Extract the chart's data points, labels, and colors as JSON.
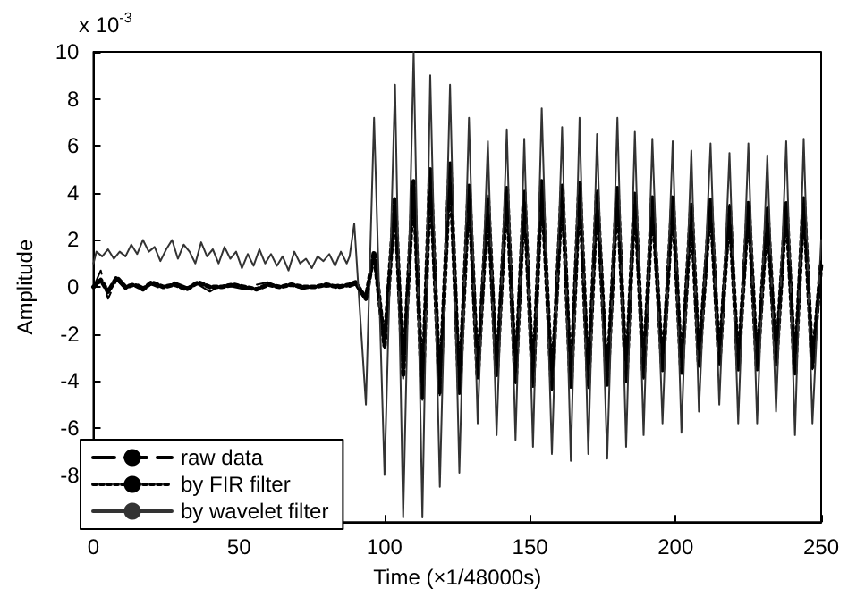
{
  "chart_data": {
    "type": "line",
    "xlabel": "Time (×1/48000s)",
    "ylabel": "Amplitude",
    "annotations": [
      "x 10$^{-3}$"
    ],
    "x": [
      0,
      2.5,
      5,
      8,
      11,
      14,
      17,
      20,
      24,
      28,
      32,
      36,
      40,
      44,
      48,
      52,
      56,
      60,
      64,
      68,
      72,
      76,
      80,
      84,
      88,
      90,
      93.6,
      96.4,
      100,
      103.6,
      106.4,
      110,
      113,
      115.7,
      119,
      122.5,
      125.7,
      129,
      132,
      135.5,
      138.5,
      142,
      145,
      148,
      151,
      154,
      157.5,
      161,
      164,
      167,
      170,
      173,
      176.5,
      180,
      183,
      186,
      189,
      192,
      195.5,
      199,
      202,
      205.4,
      208,
      212,
      215,
      218.5,
      221.5,
      225,
      228,
      231.5,
      234.5,
      238,
      241,
      244,
      247,
      250
    ],
    "series": [
      {
        "name": "raw data",
        "color": "#000000",
        "line_style": "dashed",
        "values": [
          0,
          0.7,
          -0.5,
          0.3,
          -0.1,
          0.2,
          0,
          0.1,
          -0.1,
          0.2,
          0,
          0.1,
          -0.2,
          0.1,
          0,
          -0.1,
          0.1,
          0.2,
          0,
          0.1,
          -0.1,
          0.1,
          0,
          0.1,
          0,
          0.1,
          -0.6,
          1.4,
          -2.6,
          3.7,
          -3.9,
          4.4,
          -4.8,
          4.9,
          -4.6,
          5.2,
          -4.4,
          4.2,
          -3.9,
          3.9,
          -3.7,
          4.1,
          -4.1,
          4.1,
          -4.1,
          4.4,
          -4.4,
          4.2,
          -4.2,
          4.3,
          -4.3,
          4.1,
          -4.1,
          4.1,
          -3.9,
          3.9,
          -3.9,
          3.7,
          -3.5,
          3.7,
          -3.6,
          3.4,
          -3.4,
          3.6,
          -3.3,
          3.5,
          -3.4,
          3.5,
          -3.4,
          3.4,
          -3.2,
          3.5,
          -3.6,
          3.7,
          -3.5,
          1.1
        ]
      },
      {
        "name": "by FIR filter",
        "color": "#000000",
        "line_style": "dotted",
        "values": [
          0,
          0.3,
          -0.2,
          0.4,
          0,
          0.1,
          -0.1,
          0.2,
          0,
          0.1,
          -0.1,
          0.2,
          0,
          0,
          0.1,
          0,
          -0.1,
          0.1,
          0,
          0.1,
          0,
          0,
          0.1,
          0,
          0.1,
          0.2,
          -0.5,
          1.5,
          -2.5,
          3.8,
          -3.8,
          4.5,
          -4.7,
          5.0,
          -4.5,
          5.3,
          -4.5,
          4.3,
          -3.8,
          3.8,
          -3.8,
          4.2,
          -4.0,
          4.0,
          -4.2,
          4.5,
          -4.3,
          4.3,
          -4.3,
          4.4,
          -4.2,
          4.0,
          -4.2,
          4.2,
          -4.0,
          4.0,
          -3.8,
          3.8,
          -3.6,
          3.8,
          -3.7,
          3.5,
          -3.3,
          3.7,
          -3.2,
          3.4,
          -3.5,
          3.6,
          -3.5,
          3.3,
          -3.3,
          3.6,
          -3.7,
          3.8,
          -3.4,
          1.0
        ]
      },
      {
        "name": "by wavelet filter",
        "color": "#333333",
        "line_style": "solid",
        "x": [
          0,
          1,
          3,
          5,
          7,
          9,
          11,
          13,
          15,
          17,
          19,
          21,
          23,
          25,
          27,
          29,
          31,
          33,
          35,
          37,
          39,
          41,
          43,
          45,
          47,
          49,
          51,
          53,
          55,
          57,
          59,
          61,
          63,
          65,
          67,
          69,
          71,
          73,
          75,
          77,
          79,
          81,
          83,
          85,
          87,
          88,
          89.6,
          93.6,
          96.4,
          100,
          103.6,
          106.4,
          110,
          113,
          115.7,
          119,
          122.5,
          125.7,
          129,
          132,
          135.5,
          138.5,
          142,
          145,
          148,
          151,
          154,
          157.5,
          161,
          164,
          167,
          170,
          173,
          176.5,
          180,
          183,
          186,
          189,
          192,
          195.5,
          199,
          202,
          205.4,
          208,
          212,
          215,
          218.5,
          221.5,
          225,
          228,
          231.5,
          234.5,
          238,
          241,
          244,
          247,
          250
        ],
        "values": [
          1.0,
          1.5,
          1.3,
          1.6,
          1.2,
          1.5,
          1.3,
          1.8,
          1.4,
          2.0,
          1.5,
          1.7,
          1.1,
          1.6,
          2.0,
          1.2,
          1.8,
          1.5,
          1.0,
          1.9,
          1.3,
          1.6,
          1.0,
          1.7,
          1.2,
          1.5,
          0.8,
          1.4,
          0.9,
          1.6,
          1.0,
          1.4,
          0.9,
          1.3,
          0.7,
          1.5,
          1.0,
          1.2,
          0.8,
          1.3,
          1.1,
          1.4,
          0.9,
          1.5,
          1.0,
          1.3,
          2.7,
          -5.0,
          7.2,
          -8.0,
          8.6,
          -9.8,
          10,
          -9.8,
          9.0,
          -8.5,
          8.6,
          -7.9,
          7.2,
          -5.8,
          6.2,
          -6.3,
          6.7,
          -6.5,
          6.3,
          -6.8,
          7.6,
          -7.1,
          6.8,
          -7.4,
          7.2,
          -7.1,
          6.5,
          -7.3,
          7.2,
          -6.8,
          6.6,
          -6.3,
          6.3,
          -5.8,
          6.2,
          -6.2,
          5.8,
          -5.3,
          6.1,
          -5.0,
          5.7,
          -5.8,
          6.1,
          -5.8,
          5.6,
          -5.3,
          6.2,
          -6.3,
          6.3,
          -5.8,
          2.0
        ]
      }
    ],
    "xlim": [
      0,
      250
    ],
    "xticks": [
      0,
      50,
      100,
      150,
      200,
      250
    ],
    "ylim": [
      -10,
      10
    ],
    "yticks": [
      {
        "value": -10,
        "label": null
      },
      -8,
      -6,
      -4,
      -2,
      0,
      2,
      4,
      6,
      8,
      10
    ],
    "grid": false,
    "legend": "bottom left",
    "marker": "none"
  }
}
